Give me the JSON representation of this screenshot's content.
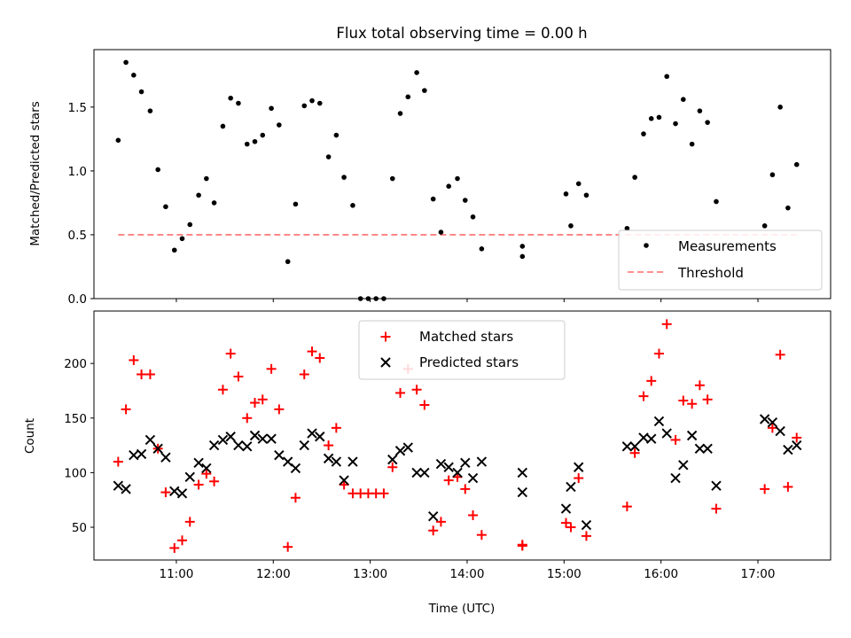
{
  "chart_data": [
    {
      "type": "scatter",
      "title": "Flux total observing time = 0.00 h",
      "xlabel": "",
      "ylabel": "Matched/Predicted stars",
      "xlim": [
        10.15,
        17.75
      ],
      "ylim": [
        0.0,
        1.95
      ],
      "yticks": [
        0.0,
        0.5,
        1.0,
        1.5
      ],
      "ytick_labels": [
        "0.0",
        "0.5",
        "1.0",
        "1.5"
      ],
      "xticks": [
        11,
        12,
        13,
        14,
        15,
        16,
        17
      ],
      "grid": false,
      "legend_position": "lower-right",
      "series": [
        {
          "name": "Measurements",
          "marker": "dot",
          "color": "#000000",
          "points": [
            [
              10.4,
              1.24
            ],
            [
              10.48,
              1.85
            ],
            [
              10.56,
              1.75
            ],
            [
              10.64,
              1.62
            ],
            [
              10.73,
              1.47
            ],
            [
              10.81,
              1.01
            ],
            [
              10.89,
              0.72
            ],
            [
              10.98,
              0.38
            ],
            [
              11.06,
              0.47
            ],
            [
              11.14,
              0.58
            ],
            [
              11.23,
              0.81
            ],
            [
              11.31,
              0.94
            ],
            [
              11.39,
              0.75
            ],
            [
              11.48,
              1.35
            ],
            [
              11.56,
              1.57
            ],
            [
              11.64,
              1.53
            ],
            [
              11.73,
              1.21
            ],
            [
              11.81,
              1.23
            ],
            [
              11.89,
              1.28
            ],
            [
              11.98,
              1.49
            ],
            [
              12.06,
              1.36
            ],
            [
              12.15,
              0.29
            ],
            [
              12.23,
              0.74
            ],
            [
              12.32,
              1.51
            ],
            [
              12.4,
              1.55
            ],
            [
              12.48,
              1.53
            ],
            [
              12.57,
              1.11
            ],
            [
              12.65,
              1.28
            ],
            [
              12.73,
              0.95
            ],
            [
              12.82,
              0.73
            ],
            [
              12.9,
              0.0
            ],
            [
              12.98,
              0.0
            ],
            [
              13.06,
              0.0
            ],
            [
              13.14,
              0.0
            ],
            [
              13.23,
              0.94
            ],
            [
              13.31,
              1.45
            ],
            [
              13.39,
              1.58
            ],
            [
              13.48,
              1.77
            ],
            [
              13.56,
              1.63
            ],
            [
              13.65,
              0.78
            ],
            [
              13.73,
              0.52
            ],
            [
              13.81,
              0.88
            ],
            [
              13.9,
              0.94
            ],
            [
              13.98,
              0.77
            ],
            [
              14.06,
              0.64
            ],
            [
              14.15,
              0.39
            ],
            [
              14.57,
              0.41
            ],
            [
              14.57,
              0.33
            ],
            [
              15.02,
              0.82
            ],
            [
              15.07,
              0.57
            ],
            [
              15.15,
              0.9
            ],
            [
              15.23,
              0.81
            ],
            [
              15.65,
              0.55
            ],
            [
              15.73,
              0.95
            ],
            [
              15.82,
              1.29
            ],
            [
              15.9,
              1.41
            ],
            [
              15.98,
              1.42
            ],
            [
              16.06,
              1.74
            ],
            [
              16.15,
              1.37
            ],
            [
              16.23,
              1.56
            ],
            [
              16.32,
              1.21
            ],
            [
              16.4,
              1.47
            ],
            [
              16.48,
              1.38
            ],
            [
              16.57,
              0.76
            ],
            [
              17.07,
              0.57
            ],
            [
              17.15,
              0.97
            ],
            [
              17.23,
              1.5
            ],
            [
              17.31,
              0.71
            ],
            [
              17.4,
              1.05
            ]
          ]
        },
        {
          "name": "Threshold",
          "style": "dashed",
          "color": "#ff8080",
          "x": [
            10.4,
            17.4
          ],
          "values": [
            0.5,
            0.5
          ]
        }
      ]
    },
    {
      "type": "scatter",
      "title": "",
      "xlabel": "Time (UTC)",
      "ylabel": "Count",
      "xlim": [
        10.15,
        17.75
      ],
      "ylim": [
        20,
        248
      ],
      "yticks": [
        50,
        100,
        150,
        200
      ],
      "ytick_labels": [
        "50",
        "100",
        "150",
        "200"
      ],
      "xticks": [
        11,
        12,
        13,
        14,
        15,
        16,
        17
      ],
      "xtick_labels": [
        "11:00",
        "12:00",
        "13:00",
        "14:00",
        "15:00",
        "16:00",
        "17:00"
      ],
      "grid": false,
      "legend_position": "upper-center",
      "series": [
        {
          "name": "Matched stars",
          "marker": "plus",
          "color": "#ff0000",
          "points": [
            [
              10.4,
              110
            ],
            [
              10.48,
              158
            ],
            [
              10.56,
              203
            ],
            [
              10.64,
              190
            ],
            [
              10.73,
              190
            ],
            [
              10.81,
              122
            ],
            [
              10.89,
              82
            ],
            [
              10.98,
              31
            ],
            [
              11.06,
              38
            ],
            [
              11.14,
              55
            ],
            [
              11.23,
              89
            ],
            [
              11.31,
              99
            ],
            [
              11.39,
              92
            ],
            [
              11.48,
              176
            ],
            [
              11.56,
              209
            ],
            [
              11.64,
              188
            ],
            [
              11.73,
              150
            ],
            [
              11.81,
              164
            ],
            [
              11.89,
              167
            ],
            [
              11.98,
              195
            ],
            [
              12.06,
              158
            ],
            [
              12.15,
              32
            ],
            [
              12.23,
              77
            ],
            [
              12.32,
              190
            ],
            [
              12.4,
              211
            ],
            [
              12.48,
              205
            ],
            [
              12.57,
              125
            ],
            [
              12.65,
              141
            ],
            [
              12.73,
              89
            ],
            [
              12.82,
              81
            ],
            [
              12.9,
              81
            ],
            [
              12.98,
              81
            ],
            [
              13.06,
              81
            ],
            [
              13.14,
              81
            ],
            [
              13.23,
              105
            ],
            [
              13.31,
              173
            ],
            [
              13.39,
              195
            ],
            [
              13.48,
              176
            ],
            [
              13.56,
              162
            ],
            [
              13.65,
              47
            ],
            [
              13.73,
              55
            ],
            [
              13.81,
              93
            ],
            [
              13.9,
              96
            ],
            [
              13.98,
              85
            ],
            [
              14.06,
              61
            ],
            [
              14.15,
              43
            ],
            [
              14.57,
              34
            ],
            [
              14.57,
              33
            ],
            [
              15.02,
              54
            ],
            [
              15.07,
              50
            ],
            [
              15.15,
              95
            ],
            [
              15.23,
              42
            ],
            [
              15.65,
              69
            ],
            [
              15.73,
              118
            ],
            [
              15.82,
              170
            ],
            [
              15.9,
              184
            ],
            [
              15.98,
              209
            ],
            [
              16.06,
              236
            ],
            [
              16.15,
              130
            ],
            [
              16.23,
              166
            ],
            [
              16.32,
              163
            ],
            [
              16.4,
              180
            ],
            [
              16.48,
              167
            ],
            [
              16.57,
              67
            ],
            [
              17.07,
              85
            ],
            [
              17.15,
              141
            ],
            [
              17.23,
              208
            ],
            [
              17.31,
              87
            ],
            [
              17.4,
              132
            ]
          ]
        },
        {
          "name": "Predicted stars",
          "marker": "x",
          "color": "#000000",
          "points": [
            [
              10.4,
              88
            ],
            [
              10.48,
              85
            ],
            [
              10.56,
              116
            ],
            [
              10.64,
              117
            ],
            [
              10.73,
              130
            ],
            [
              10.81,
              122
            ],
            [
              10.89,
              114
            ],
            [
              10.98,
              83
            ],
            [
              11.06,
              81
            ],
            [
              11.14,
              96
            ],
            [
              11.23,
              109
            ],
            [
              11.31,
              104
            ],
            [
              11.39,
              125
            ],
            [
              11.48,
              130
            ],
            [
              11.56,
              133
            ],
            [
              11.64,
              125
            ],
            [
              11.73,
              124
            ],
            [
              11.81,
              134
            ],
            [
              11.89,
              131
            ],
            [
              11.98,
              131
            ],
            [
              12.06,
              116
            ],
            [
              12.15,
              110
            ],
            [
              12.23,
              104
            ],
            [
              12.32,
              125
            ],
            [
              12.4,
              136
            ],
            [
              12.48,
              133
            ],
            [
              12.57,
              113
            ],
            [
              12.65,
              110
            ],
            [
              12.73,
              93
            ],
            [
              12.82,
              110
            ],
            [
              13.23,
              112
            ],
            [
              13.31,
              120
            ],
            [
              13.39,
              123
            ],
            [
              13.48,
              100
            ],
            [
              13.56,
              100
            ],
            [
              13.65,
              60
            ],
            [
              13.73,
              108
            ],
            [
              13.81,
              105
            ],
            [
              13.9,
              100
            ],
            [
              13.98,
              109
            ],
            [
              14.06,
              95
            ],
            [
              14.15,
              110
            ],
            [
              14.57,
              82
            ],
            [
              14.57,
              100
            ],
            [
              15.02,
              67
            ],
            [
              15.07,
              87
            ],
            [
              15.15,
              105
            ],
            [
              15.23,
              52
            ],
            [
              15.65,
              124
            ],
            [
              15.73,
              124
            ],
            [
              15.82,
              132
            ],
            [
              15.9,
              131
            ],
            [
              15.98,
              147
            ],
            [
              16.06,
              136
            ],
            [
              16.15,
              95
            ],
            [
              16.23,
              107
            ],
            [
              16.32,
              134
            ],
            [
              16.4,
              122
            ],
            [
              16.48,
              122
            ],
            [
              16.57,
              88
            ],
            [
              17.07,
              149
            ],
            [
              17.15,
              146
            ],
            [
              17.23,
              138
            ],
            [
              17.31,
              121
            ],
            [
              17.4,
              125
            ]
          ]
        }
      ]
    }
  ]
}
